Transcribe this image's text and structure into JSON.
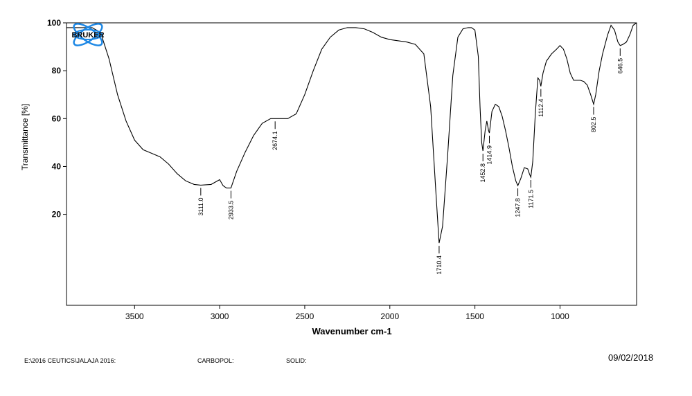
{
  "chart_data": {
    "type": "line",
    "title": "",
    "xlabel": "Wavenumber cm-1",
    "ylabel": "Transmittance [%]",
    "xlim": [
      3900,
      550
    ],
    "ylim": [
      -18,
      100
    ],
    "x_reversed": true,
    "xticks": [
      3500,
      3000,
      2500,
      2000,
      1500,
      1000
    ],
    "yticks": [
      20,
      40,
      60,
      80,
      100
    ],
    "grid": false,
    "line_color": "#000000",
    "series": [
      {
        "x": [
          3900,
          3850,
          3800,
          3750,
          3700,
          3650,
          3600,
          3550,
          3500,
          3450,
          3400,
          3350,
          3300,
          3250,
          3200,
          3150,
          3111,
          3050,
          3000,
          2980,
          2960,
          2933.5,
          2900,
          2850,
          2800,
          2750,
          2700,
          2674.1,
          2600,
          2550,
          2500,
          2450,
          2400,
          2350,
          2300,
          2250,
          2200,
          2150,
          2100,
          2050,
          2000,
          1950,
          1900,
          1850,
          1800,
          1760,
          1730,
          1710.4,
          1690,
          1660,
          1630,
          1600,
          1570,
          1540,
          1520,
          1500,
          1480,
          1470,
          1460,
          1452.8,
          1440,
          1430,
          1420,
          1414.9,
          1400,
          1380,
          1360,
          1340,
          1320,
          1300,
          1280,
          1260,
          1247.8,
          1230,
          1210,
          1190,
          1180,
          1171.5,
          1160,
          1145,
          1130,
          1120,
          1112.4,
          1100,
          1080,
          1050,
          1020,
          1000,
          980,
          960,
          940,
          920,
          900,
          880,
          860,
          840,
          820,
          802.5,
          790,
          770,
          750,
          720,
          700,
          680,
          660,
          646.5,
          630,
          610,
          590,
          570,
          550
        ],
        "y": [
          98,
          98,
          98,
          98,
          96,
          85,
          70,
          59,
          51,
          47,
          45.5,
          44,
          41,
          37,
          34,
          32.5,
          32.2,
          32.5,
          34.5,
          32,
          31,
          31,
          38,
          46,
          53,
          58,
          60,
          60,
          60,
          62,
          70,
          80,
          89,
          94,
          97,
          98,
          98,
          97.5,
          96,
          94,
          93,
          92.5,
          92,
          91,
          87,
          65,
          30,
          8,
          15,
          45,
          78,
          94,
          97.5,
          98,
          98,
          97,
          86,
          65,
          50,
          46.5,
          55,
          59,
          55,
          54,
          63,
          66,
          65,
          61,
          55,
          48,
          40,
          34,
          32,
          35,
          39.5,
          39,
          37,
          35.5,
          42,
          62,
          77,
          76,
          73.5,
          79,
          84,
          87,
          89,
          90.5,
          89,
          85,
          79,
          76,
          76,
          76,
          75.5,
          74,
          70,
          66,
          70,
          80,
          87,
          95,
          99,
          97,
          92,
          90.5,
          91,
          92,
          95,
          99,
          100
        ]
      }
    ],
    "peak_labels": [
      {
        "x": 3111.0,
        "y": 32.2,
        "label": "3111.0"
      },
      {
        "x": 2933.5,
        "y": 31,
        "label": "2933.5"
      },
      {
        "x": 2674.1,
        "y": 60,
        "label": "2674.1"
      },
      {
        "x": 1710.4,
        "y": 8,
        "label": "1710.4"
      },
      {
        "x": 1452.8,
        "y": 46.5,
        "label": "1452.8"
      },
      {
        "x": 1414.9,
        "y": 54,
        "label": "1414.9"
      },
      {
        "x": 1247.8,
        "y": 32,
        "label": "1247.8"
      },
      {
        "x": 1171.5,
        "y": 35.5,
        "label": "1171.5"
      },
      {
        "x": 1112.4,
        "y": 73.5,
        "label": "1112.4"
      },
      {
        "x": 802.5,
        "y": 66,
        "label": "802.5"
      },
      {
        "x": 646.5,
        "y": 90.5,
        "label": "646.5"
      }
    ]
  },
  "logo": {
    "text": "BRUKER",
    "color": "#1e88e5"
  },
  "footer": {
    "path": "E:\\2016 CEUTICS\\JALAJA 2016:",
    "sample": "CARBOPOL:",
    "state": "SOLID:",
    "date": "09/02/2018"
  }
}
